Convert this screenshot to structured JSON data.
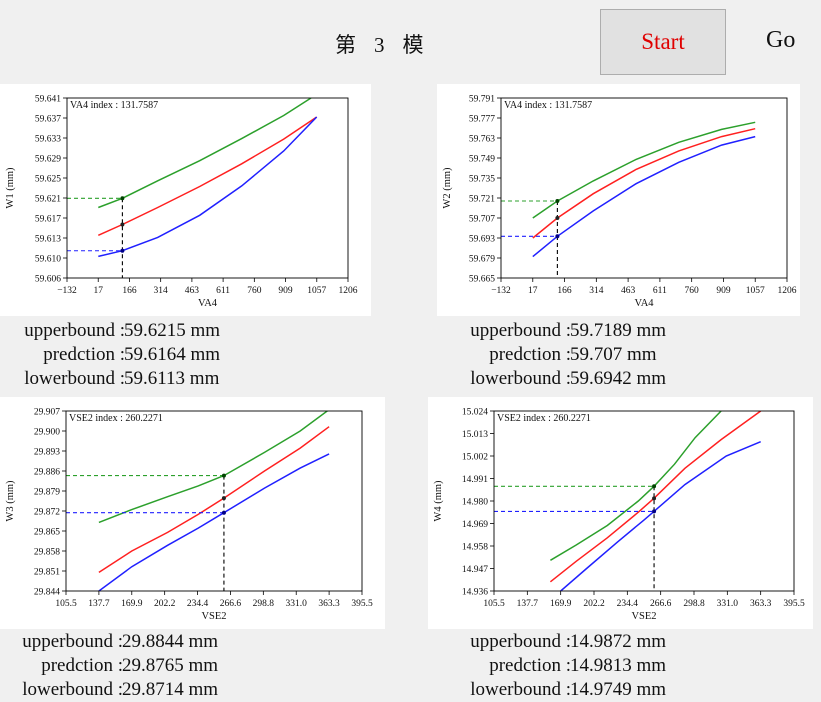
{
  "header": {
    "title_chars": [
      "第",
      "3",
      "模"
    ],
    "start_label": "Start",
    "go_label": "Go"
  },
  "colors": {
    "upper": "#2ca02c",
    "pred": "#ff2020",
    "lower": "#2020ff"
  },
  "panels": [
    {
      "id": "p1",
      "annotation": "VA4 index : 131.7587",
      "readout": {
        "upper_label": "upperbound :",
        "upper_value": "59.6215 mm",
        "pred_label": "predction :",
        "pred_value": "59.6164 mm",
        "lower_label": "lowerbound :",
        "lower_value": "59.6113 mm"
      },
      "chart_data": {
        "type": "line",
        "xlabel": "VA4",
        "ylabel": "W1 (mm)",
        "xlim": [
          -132,
          1206
        ],
        "ylim": [
          59.606,
          59.641
        ],
        "xticks": [
          "-132",
          "17",
          "166",
          "314",
          "463",
          "611",
          "760",
          "909",
          "1057",
          "1206"
        ],
        "yticks": [
          "59.606",
          "59.610",
          "59.613",
          "59.617",
          "59.621",
          "59.625",
          "59.629",
          "59.633",
          "59.637",
          "59.641"
        ],
        "marker_x": 131.7587,
        "marker": {
          "upper": 59.6215,
          "pred": 59.6164,
          "lower": 59.6113
        },
        "series": [
          {
            "key": "upper",
            "x": [
              17,
              131.8,
              300,
              500,
              700,
              900,
              1030
            ],
            "y": [
              59.6197,
              59.6215,
              59.6249,
              59.6288,
              59.6331,
              59.6376,
              59.641
            ]
          },
          {
            "key": "pred",
            "x": [
              17,
              131.8,
              300,
              500,
              700,
              900,
              1057
            ],
            "y": [
              59.6143,
              59.6164,
              59.6197,
              59.6238,
              59.6282,
              59.633,
              59.6373
            ]
          },
          {
            "key": "lower",
            "x": [
              17,
              131.8,
              300,
              500,
              700,
              900,
              1057
            ],
            "y": [
              59.6102,
              59.6113,
              59.6139,
              59.6182,
              59.6239,
              59.6307,
              59.6373
            ]
          }
        ]
      }
    },
    {
      "id": "p2",
      "annotation": "VA4 index : 131.7587",
      "readout": {
        "upper_label": "upperbound :",
        "upper_value": "59.7189 mm",
        "pred_label": "predction :",
        "pred_value": "59.707 mm",
        "lower_label": "lowerbound :",
        "lower_value": "59.6942 mm"
      },
      "chart_data": {
        "type": "line",
        "xlabel": "VA4",
        "ylabel": "W2 (mm)",
        "xlim": [
          -132,
          1206
        ],
        "ylim": [
          59.665,
          59.791
        ],
        "xticks": [
          "-132",
          "17",
          "166",
          "314",
          "463",
          "611",
          "760",
          "909",
          "1057",
          "1206"
        ],
        "yticks": [
          "59.665",
          "59.679",
          "59.693",
          "59.707",
          "59.721",
          "59.735",
          "59.749",
          "59.763",
          "59.777",
          "59.791"
        ],
        "marker_x": 131.7587,
        "marker": {
          "upper": 59.7189,
          "pred": 59.707,
          "lower": 59.6942
        },
        "series": [
          {
            "key": "upper",
            "x": [
              17,
              131.8,
              300,
              500,
              700,
              900,
              1057
            ],
            "y": [
              59.707,
              59.7189,
              59.733,
              59.748,
              59.76,
              59.769,
              59.774
            ]
          },
          {
            "key": "pred",
            "x": [
              17,
              131.8,
              300,
              500,
              700,
              900,
              1057
            ],
            "y": [
              59.693,
              59.707,
              59.724,
              59.741,
              59.754,
              59.764,
              59.7695
            ]
          },
          {
            "key": "lower",
            "x": [
              17,
              131.8,
              300,
              500,
              700,
              900,
              1057
            ],
            "y": [
              59.68,
              59.6942,
              59.712,
              59.731,
              59.746,
              59.758,
              59.764
            ]
          }
        ]
      }
    },
    {
      "id": "p3",
      "annotation": "VSE2 index : 260.2271",
      "readout": {
        "upper_label": "upperbound :",
        "upper_value": "29.8844 mm",
        "pred_label": "predction :",
        "pred_value": "29.8765 mm",
        "lower_label": "lowerbound :",
        "lower_value": "29.8714 mm"
      },
      "chart_data": {
        "type": "line",
        "xlabel": "VSE2",
        "ylabel": "W3 (mm)",
        "xlim": [
          105.5,
          395.5
        ],
        "ylim": [
          29.844,
          29.907
        ],
        "xticks": [
          "105.5",
          "137.7",
          "169.9",
          "202.2",
          "234.4",
          "266.6",
          "298.8",
          "331.0",
          "363.3",
          "395.5"
        ],
        "yticks": [
          "29.844",
          "29.851",
          "29.858",
          "29.865",
          "29.872",
          "29.879",
          "29.886",
          "29.893",
          "29.900",
          "29.907"
        ],
        "marker_x": 260.2271,
        "marker": {
          "upper": 29.8844,
          "pred": 29.8765,
          "lower": 29.8714
        },
        "series": [
          {
            "key": "upper",
            "x": [
              137.7,
              170,
              205,
              235,
              260.2,
              300,
              335,
              363.3
            ],
            "y": [
              29.868,
              29.8725,
              29.877,
              29.8808,
              29.8844,
              29.8925,
              29.9,
              29.9075
            ]
          },
          {
            "key": "pred",
            "x": [
              137.7,
              170,
              205,
              235,
              260.2,
              300,
              335,
              363.3
            ],
            "y": [
              29.8505,
              29.858,
              29.8645,
              29.8708,
              29.8765,
              29.886,
              29.894,
              29.9015
            ]
          },
          {
            "key": "lower",
            "x": [
              137.7,
              170,
              205,
              235,
              260.2,
              300,
              335,
              363.3
            ],
            "y": [
              29.844,
              29.8525,
              29.86,
              29.866,
              29.8714,
              29.88,
              29.887,
              29.892
            ]
          }
        ]
      }
    },
    {
      "id": "p4",
      "annotation": "VSE2 index : 260.2271",
      "readout": {
        "upper_label": "upperbound :",
        "upper_value": "14.9872 mm",
        "pred_label": "predction :",
        "pred_value": "14.9813 mm",
        "lower_label": "lowerbound :",
        "lower_value": "14.9749 mm"
      },
      "chart_data": {
        "type": "line",
        "xlabel": "VSE2",
        "ylabel": "W4 (mm)",
        "xlim": [
          105.5,
          395.5
        ],
        "ylim": [
          14.936,
          15.024
        ],
        "xticks": [
          "105.5",
          "137.7",
          "169.9",
          "202.2",
          "234.4",
          "266.6",
          "298.8",
          "331.0",
          "363.3",
          "395.5"
        ],
        "yticks": [
          "14.936",
          "14.947",
          "14.958",
          "14.969",
          "14.980",
          "14.991",
          "15.002",
          "15.013",
          "15.024"
        ],
        "marker_x": 260.2271,
        "marker": {
          "upper": 14.9872,
          "pred": 14.9813,
          "lower": 14.9749
        },
        "series": [
          {
            "key": "upper",
            "x": [
              160,
              185,
              215,
              245,
              260.2,
              280,
              300,
              325
            ],
            "y": [
              14.951,
              14.9585,
              14.968,
              14.98,
              14.9872,
              14.998,
              15.011,
              15.024
            ]
          },
          {
            "key": "pred",
            "x": [
              160,
              185,
              215,
              245,
              260.2,
              290,
              325,
              363.3
            ],
            "y": [
              14.9405,
              14.9505,
              14.962,
              14.9745,
              14.9813,
              14.996,
              15.01,
              15.024
            ]
          },
          {
            "key": "lower",
            "x": [
              170,
              195,
              225,
              250,
              260.2,
              290,
              330,
              363.3
            ],
            "y": [
              14.936,
              14.947,
              14.96,
              14.9705,
              14.9749,
              14.988,
              15.002,
              15.009
            ]
          }
        ]
      }
    }
  ]
}
